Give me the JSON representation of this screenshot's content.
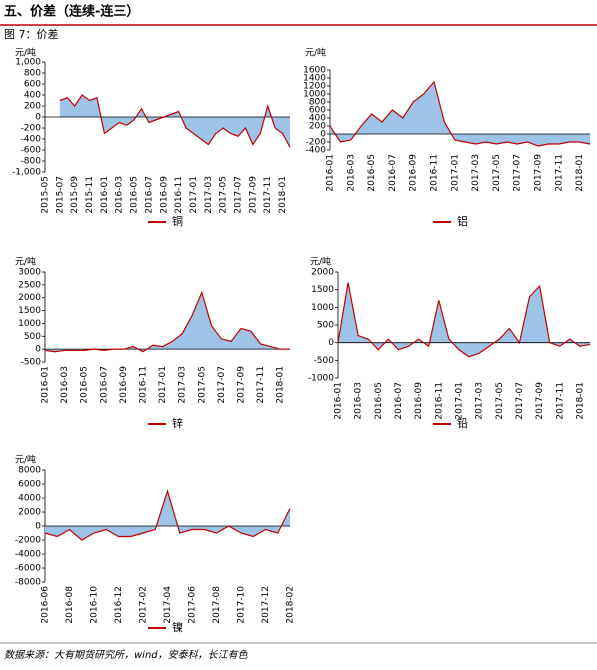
{
  "header": "五、价差（连续-连三）",
  "caption": "图 7：价差",
  "source": "数据来源：大有期货研究所，wind，安泰科，长江有色",
  "chart_data": [
    {
      "type": "area",
      "y_label": "元/吨",
      "series": [
        {
          "name": "铜",
          "color": "#c00000",
          "fill": "#9dc3e6",
          "values": [
            null,
            null,
            300,
            350,
            200,
            400,
            300,
            350,
            -300,
            -200,
            -100,
            -150,
            -50,
            150,
            -100,
            -50,
            0,
            50,
            100,
            -200,
            -300,
            -400,
            -500,
            -300,
            -200,
            -300,
            -350,
            -200,
            -500,
            -300,
            200,
            -200,
            -300,
            -550
          ]
        }
      ],
      "categories": [
        "2015-05",
        null,
        "2015-07",
        null,
        "2015-09",
        null,
        "2015-11",
        null,
        "2016-01",
        null,
        "2016-03",
        null,
        "2016-05",
        null,
        "2016-07",
        null,
        "2016-09",
        null,
        "2016-11",
        null,
        "2017-01",
        null,
        "2017-03",
        null,
        "2017-05",
        null,
        "2017-07",
        null,
        "2017-09",
        null,
        "2017-11",
        null,
        "2018-01",
        null
      ],
      "ylim": [
        -1000,
        1000
      ],
      "yticks": [
        {
          "value": -1000,
          "label": "-1,000"
        },
        -800,
        -600,
        -400,
        -200,
        0,
        200,
        400,
        600,
        800,
        {
          "value": 1000,
          "label": "1,000"
        }
      ]
    },
    {
      "type": "area",
      "y_label": "元/吨",
      "series": [
        {
          "name": "铝",
          "color": "#c00000",
          "fill": "#9dc3e6",
          "values": [
            200,
            -200,
            -150,
            200,
            500,
            300,
            600,
            400,
            800,
            1000,
            1300,
            300,
            -150,
            -200,
            -250,
            -200,
            -250,
            -200,
            -250,
            -200,
            -300,
            -250,
            -250,
            -200,
            -200,
            -250
          ]
        }
      ],
      "categories": [
        "2016-01",
        null,
        "2016-03",
        null,
        "2016-05",
        null,
        "2016-07",
        null,
        "2016-09",
        null,
        "2016-11",
        null,
        "2017-01",
        null,
        "2017-03",
        null,
        "2017-05",
        null,
        "2017-07",
        null,
        "2017-09",
        null,
        "2017-11",
        null,
        "2018-01",
        null
      ],
      "ylim": [
        -400,
        1600
      ],
      "yticks": [
        -400,
        -200,
        0,
        200,
        400,
        600,
        800,
        1000,
        1200,
        1400,
        1600
      ]
    },
    {
      "type": "area",
      "y_label": "元/吨",
      "series": [
        {
          "name": "锌",
          "color": "#c00000",
          "fill": "#9dc3e6",
          "values": [
            -50,
            -100,
            -50,
            -50,
            -50,
            0,
            -50,
            0,
            0,
            100,
            -100,
            150,
            100,
            300,
            600,
            1300,
            2200,
            900,
            400,
            300,
            800,
            700,
            200,
            100,
            0,
            0
          ]
        }
      ],
      "categories": [
        "2016-01",
        null,
        "2016-03",
        null,
        "2016-05",
        null,
        "2016-07",
        null,
        "2016-09",
        null,
        "2016-11",
        null,
        "2017-01",
        null,
        "2017-03",
        null,
        "2017-05",
        null,
        "2017-07",
        null,
        "2017-09",
        null,
        "2017-11",
        null,
        "2018-01",
        null
      ],
      "ylim": [
        -500,
        3000
      ],
      "yticks": [
        -500,
        0,
        500,
        1000,
        1500,
        2000,
        2500,
        3000
      ]
    },
    {
      "type": "area",
      "y_label": "元/吨",
      "series": [
        {
          "name": "铅",
          "color": "#c00000",
          "fill": "#9dc3e6",
          "values": [
            0,
            1700,
            200,
            100,
            -200,
            100,
            -200,
            -100,
            100,
            -100,
            1200,
            100,
            -200,
            -400,
            -300,
            -100,
            100,
            400,
            0,
            1300,
            1600,
            0,
            -100,
            100,
            -100,
            -50
          ]
        }
      ],
      "categories": [
        "2016-01",
        null,
        "2016-03",
        null,
        "2016-05",
        null,
        "2016-07",
        null,
        "2016-09",
        null,
        "2016-11",
        null,
        "2017-01",
        null,
        "2017-03",
        null,
        "2017-05",
        null,
        "2017-07",
        null,
        "2017-09",
        null,
        "2017-11",
        null,
        "2018-01",
        null
      ],
      "ylim": [
        -1000,
        2000
      ],
      "yticks": [
        -1000,
        -500,
        0,
        500,
        1000,
        1500,
        2000
      ]
    },
    {
      "type": "area",
      "y_label": "元/吨",
      "series": [
        {
          "name": "镍",
          "color": "#c00000",
          "fill": "#9dc3e6",
          "values": [
            -1000,
            -1500,
            -500,
            -2000,
            -1000,
            -500,
            -1500,
            -1500,
            -1000,
            -500,
            5000,
            -1000,
            -500,
            -500,
            -1000,
            0,
            -1000,
            -1500,
            -500,
            -1000,
            2500
          ]
        }
      ],
      "categories": [
        "2016-06",
        null,
        "2016-08",
        null,
        "2016-10",
        null,
        "2016-12",
        null,
        "2017-02",
        null,
        "2017-04",
        null,
        "2017-06",
        null,
        "2017-08",
        null,
        "2017-10",
        null,
        "2017-12",
        null,
        "2018-02"
      ],
      "ylim": [
        -8000,
        8000
      ],
      "yticks": [
        -8000,
        -6000,
        -4000,
        -2000,
        0,
        2000,
        4000,
        6000,
        8000
      ]
    }
  ]
}
